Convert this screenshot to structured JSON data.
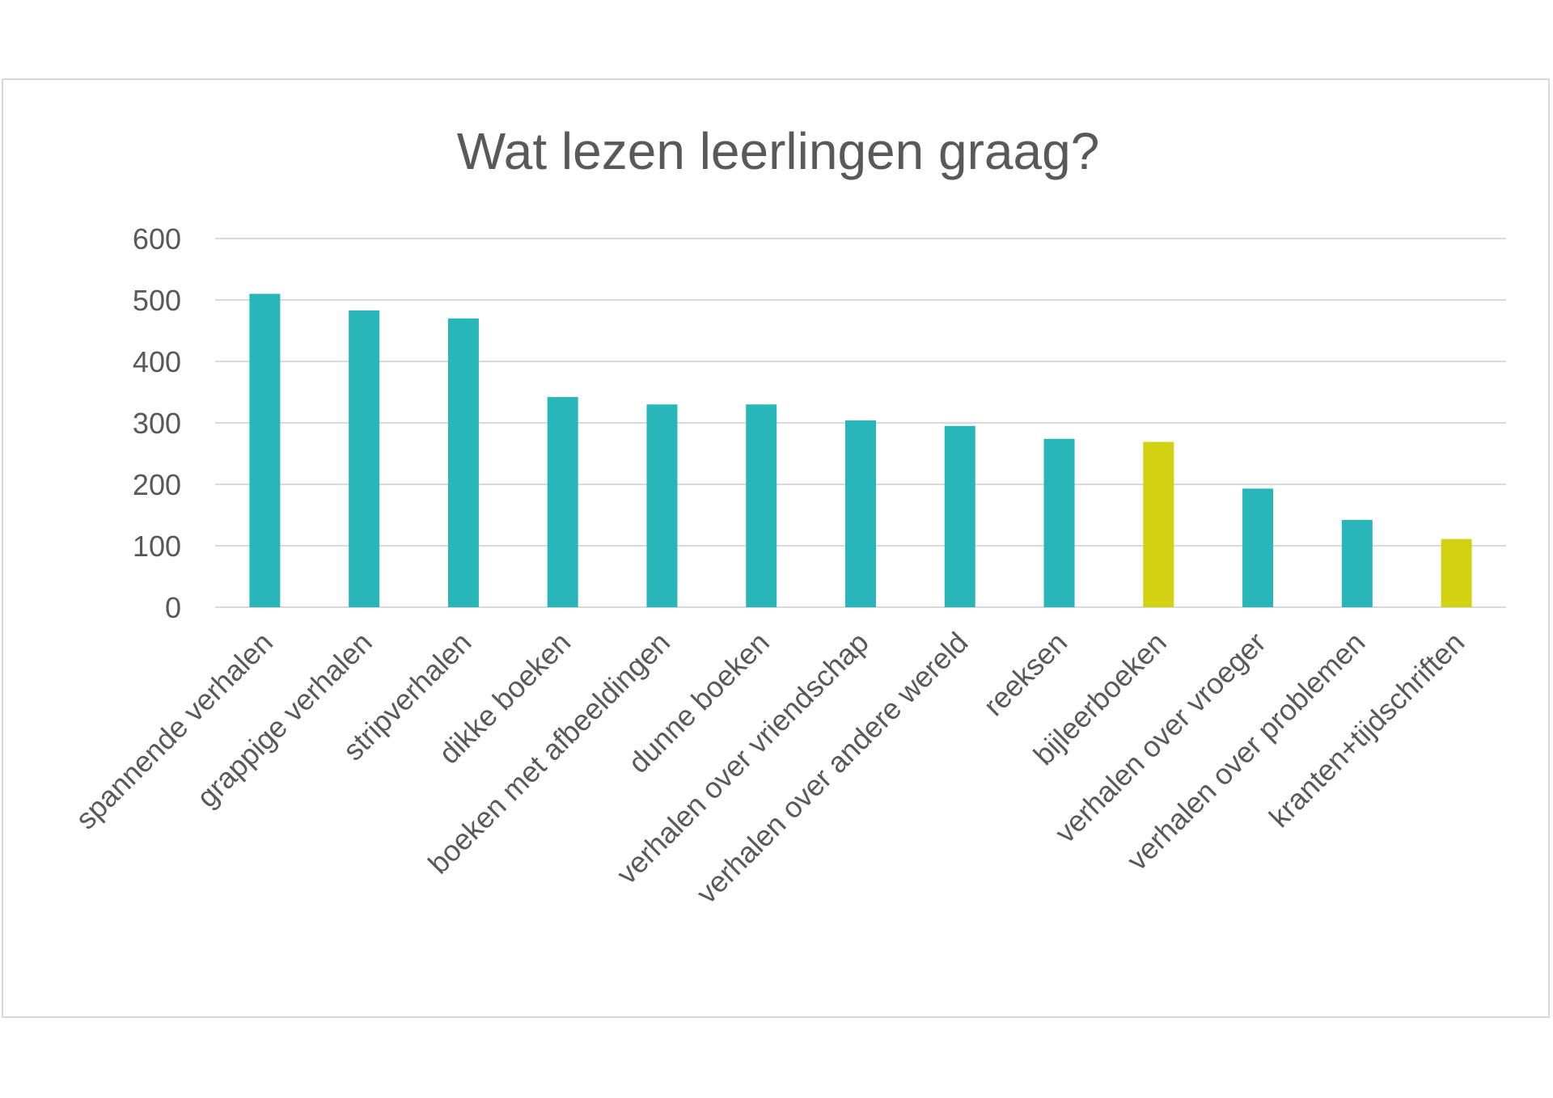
{
  "chart_data": {
    "type": "bar",
    "title": "Wat lezen leerlingen graag?",
    "xlabel": "",
    "ylabel": "",
    "ylim": [
      0,
      600
    ],
    "yticks": [
      0,
      100,
      200,
      300,
      400,
      500,
      600
    ],
    "grid": true,
    "legend": "none",
    "colors": {
      "default": "#29b6ba",
      "highlight": "#d2d212",
      "grid": "#d9d9d9",
      "text": "#595959"
    },
    "categories": [
      "spannende verhalen",
      "grappige verhalen",
      "stripverhalen",
      "dikke boeken",
      "boeken met afbeeldingen",
      "dunne boeken",
      "verhalen over vriendschap",
      "verhalen over andere wereld",
      "reeksen",
      "bijleerboeken",
      "verhalen over vroeger",
      "verhalen over problemen",
      "kranten+tijdschriften"
    ],
    "values": [
      510,
      483,
      470,
      342,
      330,
      330,
      304,
      295,
      274,
      269,
      193,
      142,
      111
    ],
    "highlighted": [
      false,
      false,
      false,
      false,
      false,
      false,
      false,
      false,
      false,
      true,
      false,
      false,
      true
    ]
  }
}
